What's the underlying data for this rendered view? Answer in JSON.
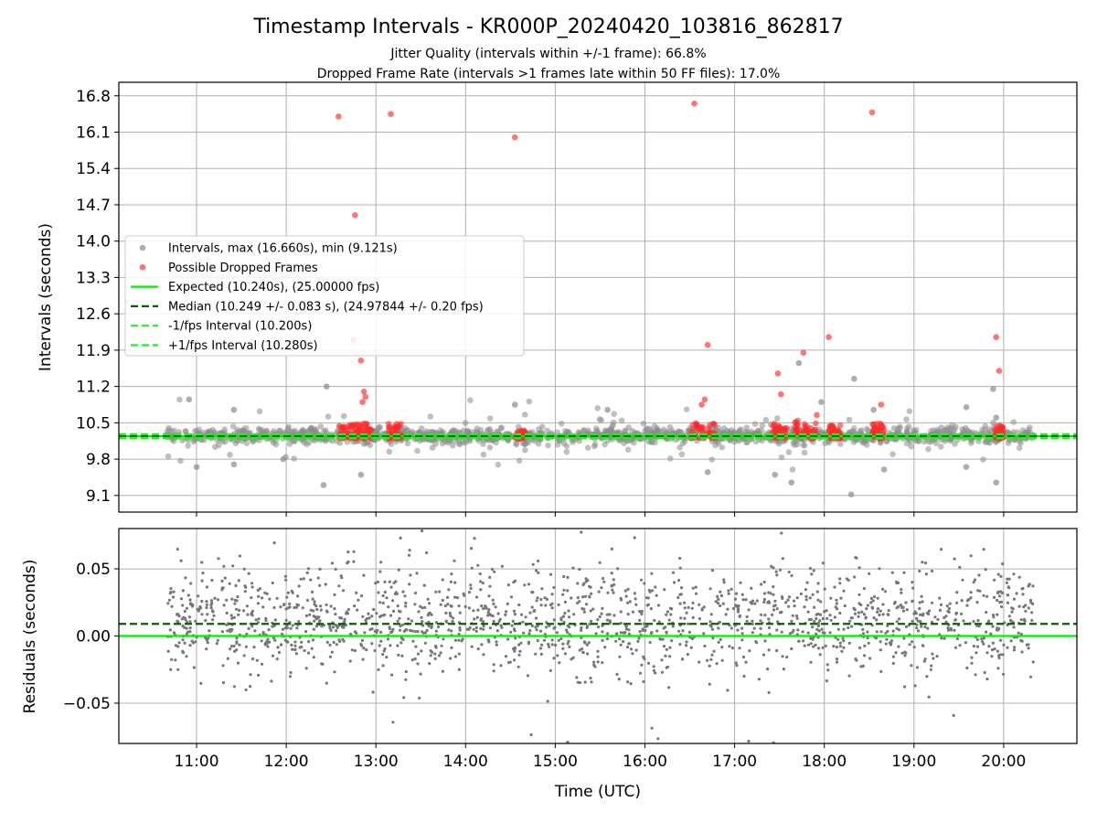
{
  "chart_data": [
    {
      "type": "scatter",
      "title": "Timestamp Intervals - KR000P_20240420_103816_862817",
      "subtitle_1": "Jitter Quality (intervals within +/-1 frame): 66.8%",
      "subtitle_2": "Dropped Frame Rate (intervals >1 frames late within 50 FF files): 17.0%",
      "ylabel": "Intervals (seconds)",
      "ylim": [
        8.78,
        17.06
      ],
      "y_ticks": [
        {
          "value": 9.1,
          "label": "9.1"
        },
        {
          "value": 9.8,
          "label": "9.8"
        },
        {
          "value": 10.5,
          "label": "10.5"
        },
        {
          "value": 11.2,
          "label": "11.2"
        },
        {
          "value": 11.9,
          "label": "11.9"
        },
        {
          "value": 12.6,
          "label": "12.6"
        },
        {
          "value": 13.3,
          "label": "13.3"
        },
        {
          "value": 14.0,
          "label": "14.0"
        },
        {
          "value": 14.7,
          "label": "14.7"
        },
        {
          "value": 15.4,
          "label": "15.4"
        },
        {
          "value": 16.1,
          "label": "16.1"
        },
        {
          "value": 16.8,
          "label": "16.8"
        }
      ],
      "grid": true,
      "legend_placement": "center-left",
      "legend": [
        {
          "label": "Intervals, max (16.660s), min (9.121s)",
          "kind": "marker",
          "color": "#8c8c8c"
        },
        {
          "label": "Possible Dropped Frames",
          "kind": "marker",
          "color": "#ff3333"
        },
        {
          "label": "Expected (10.240s), (25.00000 fps)",
          "kind": "solid",
          "color": "#00ee00"
        },
        {
          "label": "Median (10.249 +/- 0.083 s), (24.97844 +/- 0.20 fps)",
          "kind": "dashed",
          "color": "#006400"
        },
        {
          "label": "-1/fps Interval (10.200s)",
          "kind": "dashed",
          "color": "#22ee22"
        },
        {
          "label": "+1/fps Interval (10.280s)",
          "kind": "dashed",
          "color": "#22ee22"
        }
      ],
      "reference_lines": [
        {
          "name": "expected",
          "value": 10.24,
          "style": "solid",
          "color": "#00ee00"
        },
        {
          "name": "median",
          "value": 10.249,
          "style": "dashed",
          "color": "#006400"
        },
        {
          "name": "minus-one-frame",
          "value": 10.2,
          "style": "dashed",
          "color": "#22ee22"
        },
        {
          "name": "plus-one-frame",
          "value": 10.28,
          "style": "dashed",
          "color": "#22ee22"
        }
      ],
      "dropped_frames": [
        {
          "x": "12:35",
          "y": 16.4
        },
        {
          "x": "13:10",
          "y": 16.45
        },
        {
          "x": "14:33",
          "y": 16.0
        },
        {
          "x": "16:33",
          "y": 16.65
        },
        {
          "x": "18:32",
          "y": 16.48
        },
        {
          "x": "12:46",
          "y": 14.5
        },
        {
          "x": "12:45",
          "y": 12.1
        },
        {
          "x": "12:50",
          "y": 11.7
        },
        {
          "x": "12:52",
          "y": 11.1
        },
        {
          "x": "12:53",
          "y": 11.0
        },
        {
          "x": "12:51",
          "y": 10.9
        },
        {
          "x": "16:42",
          "y": 12.0
        },
        {
          "x": "16:40",
          "y": 10.95
        },
        {
          "x": "16:38",
          "y": 10.85
        },
        {
          "x": "17:29",
          "y": 11.45
        },
        {
          "x": "17:31",
          "y": 11.05
        },
        {
          "x": "17:46",
          "y": 11.85
        },
        {
          "x": "17:55",
          "y": 10.65
        },
        {
          "x": "18:03",
          "y": 12.15
        },
        {
          "x": "18:38",
          "y": 10.85
        },
        {
          "x": "19:55",
          "y": 12.15
        },
        {
          "x": "19:57",
          "y": 11.5
        }
      ],
      "dropped_frame_clusters": [
        {
          "from": "12:35",
          "to": "12:48",
          "y_min": 10.2,
          "y_max": 10.5
        },
        {
          "from": "12:45",
          "to": "12:57",
          "y_min": 10.2,
          "y_max": 10.5
        },
        {
          "from": "13:08",
          "to": "13:17",
          "y_min": 10.2,
          "y_max": 10.5
        },
        {
          "from": "14:33",
          "to": "14:40",
          "y_min": 10.2,
          "y_max": 10.35
        },
        {
          "from": "16:30",
          "to": "16:48",
          "y_min": 10.2,
          "y_max": 10.5
        },
        {
          "from": "17:25",
          "to": "17:35",
          "y_min": 10.2,
          "y_max": 10.5
        },
        {
          "from": "17:40",
          "to": "17:55",
          "y_min": 10.2,
          "y_max": 10.55
        },
        {
          "from": "18:03",
          "to": "18:12",
          "y_min": 10.2,
          "y_max": 10.45
        },
        {
          "from": "18:32",
          "to": "18:40",
          "y_min": 10.2,
          "y_max": 10.5
        },
        {
          "from": "19:54",
          "to": "20:00",
          "y_min": 10.2,
          "y_max": 10.45
        }
      ],
      "intervals_distribution": {
        "x_from": "10:40",
        "x_to": "20:20",
        "center": 10.25,
        "typical_spread": 0.12
      },
      "interval_outliers": [
        {
          "x": "10:55",
          "y": 10.95
        },
        {
          "x": "11:25",
          "y": 10.75
        },
        {
          "x": "11:00",
          "y": 9.65
        },
        {
          "x": "11:25",
          "y": 9.7
        },
        {
          "x": "11:58",
          "y": 9.8
        },
        {
          "x": "12:25",
          "y": 9.3
        },
        {
          "x": "12:27",
          "y": 11.2
        },
        {
          "x": "12:50",
          "y": 9.5
        },
        {
          "x": "14:33",
          "y": 10.85
        },
        {
          "x": "15:35",
          "y": 10.75
        },
        {
          "x": "16:42",
          "y": 9.55
        },
        {
          "x": "17:27",
          "y": 9.5
        },
        {
          "x": "17:38",
          "y": 9.35
        },
        {
          "x": "17:43",
          "y": 11.65
        },
        {
          "x": "17:58",
          "y": 10.9
        },
        {
          "x": "18:18",
          "y": 9.12
        },
        {
          "x": "18:20",
          "y": 11.35
        },
        {
          "x": "18:33",
          "y": 10.75
        },
        {
          "x": "18:40",
          "y": 9.6
        },
        {
          "x": "19:35",
          "y": 10.8
        },
        {
          "x": "19:35",
          "y": 9.65
        },
        {
          "x": "19:53",
          "y": 11.15
        },
        {
          "x": "19:55",
          "y": 9.35
        },
        {
          "x": "19:55",
          "y": 10.6
        }
      ]
    },
    {
      "type": "scatter",
      "xlabel": "Time (UTC)",
      "ylabel": "Residuals (seconds)",
      "xlim": [
        "10:08",
        "20:49"
      ],
      "ylim": [
        -0.08,
        0.08
      ],
      "x_ticks": [
        "11:00",
        "12:00",
        "13:00",
        "14:00",
        "15:00",
        "16:00",
        "17:00",
        "18:00",
        "19:00",
        "20:00"
      ],
      "y_ticks": [
        {
          "value": -0.05,
          "label": "−0.05"
        },
        {
          "value": 0.0,
          "label": "0.00"
        },
        {
          "value": 0.05,
          "label": "0.05"
        }
      ],
      "grid": true,
      "reference_lines": [
        {
          "name": "expected-zero",
          "value": 0.0,
          "style": "solid",
          "color": "#00ee00"
        },
        {
          "name": "median-offset",
          "value": 0.009,
          "style": "dashed",
          "color": "#006400"
        }
      ],
      "residuals_distribution": {
        "x_from": "10:40",
        "x_to": "20:20",
        "center": 0.012,
        "typical_spread": 0.025,
        "point_color": "#777777"
      }
    }
  ]
}
